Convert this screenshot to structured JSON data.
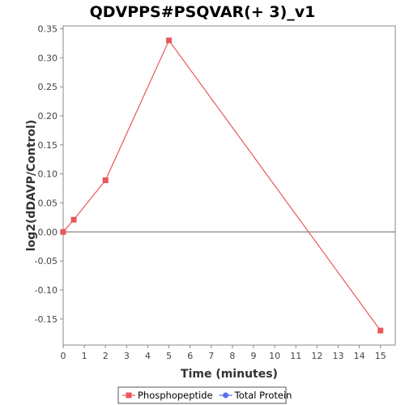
{
  "chart_data": {
    "type": "line",
    "title": "QDVPPS#PSQVAR(+ 3)_v1",
    "xlabel": "Time (minutes)",
    "ylabel": "log2(dDAVP/Control)",
    "xlim": [
      0,
      15.7
    ],
    "ylim": [
      -0.195,
      0.355
    ],
    "xticks": [
      0,
      1,
      2,
      3,
      4,
      5,
      6,
      7,
      8,
      9,
      10,
      11,
      12,
      13,
      14,
      15
    ],
    "yticks": [
      -0.15,
      -0.1,
      -0.05,
      0.0,
      0.05,
      0.1,
      0.15,
      0.2,
      0.25,
      0.3,
      0.35
    ],
    "ytick_labels": [
      "-0.15",
      "-0.10",
      "-0.05",
      "0.00",
      "0.05",
      "0.10",
      "0.15",
      "0.20",
      "0.25",
      "0.30",
      "0.35"
    ],
    "zero_line": true,
    "grid": false,
    "legend_position": "bottom",
    "series": [
      {
        "name": "Phosphopeptide",
        "color": "#e8575a",
        "marker": "square",
        "x": [
          0,
          0.5,
          2,
          5,
          15
        ],
        "y": [
          0.0,
          0.021,
          0.089,
          0.33,
          -0.17
        ]
      },
      {
        "name": "Total Protein",
        "color": "#5b6cf0",
        "marker": "circle",
        "x": [],
        "y": []
      }
    ]
  }
}
